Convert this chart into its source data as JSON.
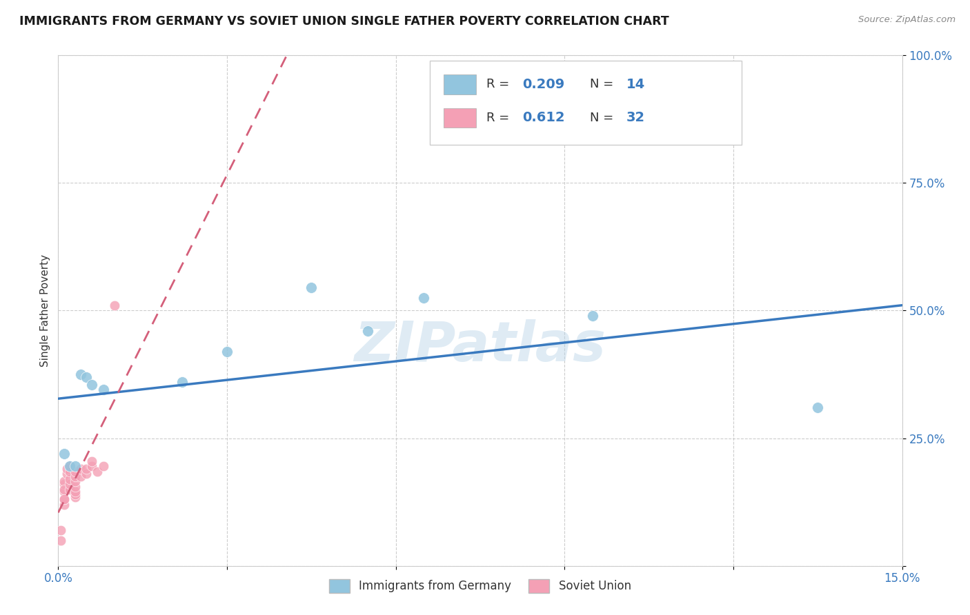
{
  "title": "IMMIGRANTS FROM GERMANY VS SOVIET UNION SINGLE FATHER POVERTY CORRELATION CHART",
  "source": "Source: ZipAtlas.com",
  "ylabel": "Single Father Poverty",
  "x_min": 0.0,
  "x_max": 0.15,
  "y_min": 0.0,
  "y_max": 1.0,
  "x_ticks": [
    0.0,
    0.03,
    0.06,
    0.09,
    0.12,
    0.15
  ],
  "x_tick_labels": [
    "0.0%",
    "",
    "",
    "",
    "",
    "15.0%"
  ],
  "y_ticks": [
    0.0,
    0.25,
    0.5,
    0.75,
    1.0
  ],
  "y_tick_labels": [
    "",
    "25.0%",
    "50.0%",
    "75.0%",
    "100.0%"
  ],
  "germany_R": 0.209,
  "germany_N": 14,
  "soviet_R": 0.612,
  "soviet_N": 32,
  "germany_color": "#92c5de",
  "soviet_color": "#f4a0b5",
  "germany_line_color": "#3a7abf",
  "soviet_line_color": "#d45f7a",
  "germany_x": [
    0.001,
    0.002,
    0.003,
    0.004,
    0.005,
    0.006,
    0.008,
    0.022,
    0.03,
    0.045,
    0.055,
    0.065,
    0.095,
    0.135
  ],
  "germany_y": [
    0.22,
    0.195,
    0.195,
    0.375,
    0.37,
    0.355,
    0.345,
    0.36,
    0.42,
    0.545,
    0.46,
    0.525,
    0.49,
    0.31
  ],
  "soviet_x": [
    0.0005,
    0.0005,
    0.001,
    0.001,
    0.001,
    0.001,
    0.001,
    0.001,
    0.001,
    0.0015,
    0.0015,
    0.002,
    0.002,
    0.002,
    0.002,
    0.002,
    0.003,
    0.003,
    0.003,
    0.003,
    0.003,
    0.003,
    0.003,
    0.004,
    0.004,
    0.005,
    0.005,
    0.006,
    0.006,
    0.007,
    0.008,
    0.01
  ],
  "soviet_y": [
    0.07,
    0.05,
    0.12,
    0.13,
    0.145,
    0.16,
    0.165,
    0.15,
    0.13,
    0.18,
    0.19,
    0.15,
    0.16,
    0.17,
    0.185,
    0.195,
    0.135,
    0.14,
    0.145,
    0.155,
    0.165,
    0.175,
    0.185,
    0.175,
    0.19,
    0.18,
    0.19,
    0.195,
    0.205,
    0.185,
    0.195,
    0.51
  ],
  "watermark_text": "ZIPatlas",
  "legend_label_germany": "Immigrants from Germany",
  "legend_label_soviet": "Soviet Union"
}
